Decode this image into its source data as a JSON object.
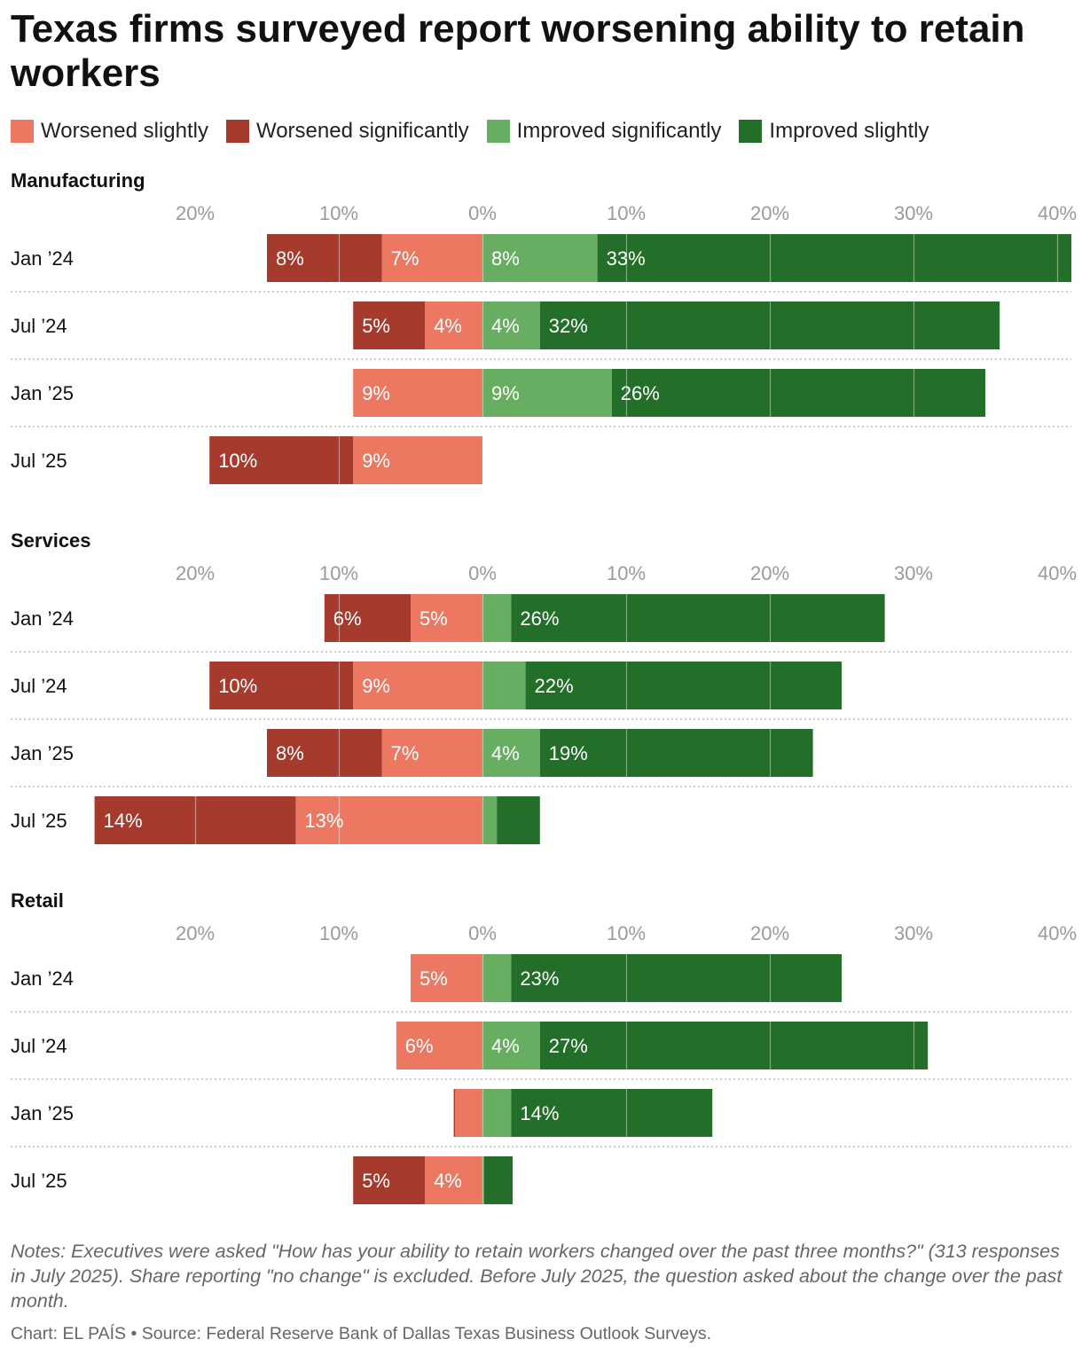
{
  "title": "Texas firms surveyed report worsening ability to retain workers",
  "legend": [
    {
      "label": "Worsened slightly",
      "color": "#ec7861"
    },
    {
      "label": "Worsened significantly",
      "color": "#a63b2d"
    },
    {
      "label": "Improved significantly",
      "color": "#67ae62"
    },
    {
      "label": "Improved slightly",
      "color": "#236e28"
    }
  ],
  "chart_data": {
    "type": "bar",
    "orientation": "horizontal",
    "stacked": "diverging",
    "xlim": [
      -20,
      40
    ],
    "tick_values": [
      -20,
      -10,
      0,
      10,
      20,
      30,
      40
    ],
    "tick_labels": [
      "20%",
      "10%",
      "0%",
      "10%",
      "20%",
      "30%",
      "40%"
    ],
    "grid": true,
    "legend_position": "top",
    "series_colors": {
      "worsened_significantly": "#a63b2d",
      "worsened_slightly": "#ec7861",
      "improved_significantly": "#67ae62",
      "improved_slightly": "#236e28"
    },
    "panels": [
      {
        "name": "Manufacturing",
        "rows": [
          {
            "label": "Jan ’24",
            "worsened_significantly": 8,
            "worsened_slightly": 7,
            "improved_significantly": 8,
            "improved_slightly": 33,
            "labels": {
              "worsened_significantly": "8%",
              "worsened_slightly": "7%",
              "improved_significantly": "8%",
              "improved_slightly": "33%"
            }
          },
          {
            "label": "Jul ’24",
            "worsened_significantly": 5,
            "worsened_slightly": 4,
            "improved_significantly": 4,
            "improved_slightly": 32,
            "labels": {
              "worsened_significantly": "5%",
              "worsened_slightly": "4%",
              "improved_significantly": "4%",
              "improved_slightly": "32%"
            }
          },
          {
            "label": "Jan ’25",
            "worsened_significantly": 0,
            "worsened_slightly": 9,
            "improved_significantly": 9,
            "improved_slightly": 26,
            "labels": {
              "worsened_slightly": "9%",
              "improved_significantly": "9%",
              "improved_slightly": "26%"
            }
          },
          {
            "label": "Jul ’25",
            "worsened_significantly": 10,
            "worsened_slightly": 9,
            "improved_significantly": 0,
            "improved_slightly": 0,
            "labels": {
              "worsened_significantly": "10%",
              "worsened_slightly": "9%"
            }
          }
        ]
      },
      {
        "name": "Services",
        "rows": [
          {
            "label": "Jan ’24",
            "worsened_significantly": 6,
            "worsened_slightly": 5,
            "improved_significantly": 2,
            "improved_slightly": 26,
            "labels": {
              "worsened_significantly": "6%",
              "worsened_slightly": "5%",
              "improved_slightly": "26%"
            }
          },
          {
            "label": "Jul ’24",
            "worsened_significantly": 10,
            "worsened_slightly": 9,
            "improved_significantly": 3,
            "improved_slightly": 22,
            "labels": {
              "worsened_significantly": "10%",
              "worsened_slightly": "9%",
              "improved_slightly": "22%"
            }
          },
          {
            "label": "Jan ’25",
            "worsened_significantly": 8,
            "worsened_slightly": 7,
            "improved_significantly": 4,
            "improved_slightly": 19,
            "labels": {
              "worsened_significantly": "8%",
              "worsened_slightly": "7%",
              "improved_significantly": "4%",
              "improved_slightly": "19%"
            }
          },
          {
            "label": "Jul ’25",
            "worsened_significantly": 14,
            "worsened_slightly": 13,
            "improved_significantly": 1,
            "improved_slightly": 3,
            "labels": {
              "worsened_significantly": "14%",
              "worsened_slightly": "13%"
            }
          }
        ]
      },
      {
        "name": "Retail",
        "rows": [
          {
            "label": "Jan ’24",
            "worsened_significantly": 0,
            "worsened_slightly": 5,
            "improved_significantly": 2,
            "improved_slightly": 23,
            "labels": {
              "worsened_slightly": "5%",
              "improved_slightly": "23%"
            }
          },
          {
            "label": "Jul ’24",
            "worsened_significantly": 0,
            "worsened_slightly": 6,
            "improved_significantly": 4,
            "improved_slightly": 27,
            "labels": {
              "worsened_slightly": "6%",
              "improved_significantly": "4%",
              "improved_slightly": "27%"
            }
          },
          {
            "label": "Jan ’25",
            "worsened_significantly": 0.1,
            "worsened_slightly": 1.9,
            "improved_significantly": 2,
            "improved_slightly": 14,
            "labels": {
              "improved_slightly": "14%"
            }
          },
          {
            "label": "Jul ’25",
            "worsened_significantly": 5,
            "worsened_slightly": 4,
            "improved_significantly": 0.1,
            "improved_slightly": 2,
            "labels": {
              "worsened_significantly": "5%",
              "worsened_slightly": "4%"
            }
          }
        ]
      }
    ]
  },
  "notes": "Notes: Executives were asked \"How has your ability to retain workers changed over the past three months?\" (313 responses in July 2025). Share reporting \"no change\" is excluded. Before July 2025, the question asked about the change over the past month.",
  "credit": "Chart: EL PAÍS • Source: Federal Reserve Bank of Dallas Texas Business Outlook Surveys."
}
